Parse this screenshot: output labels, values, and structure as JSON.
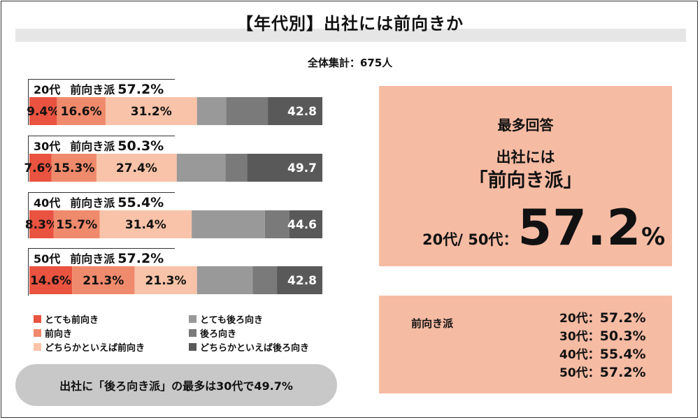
{
  "header": {
    "title": "【年代別】出社には前向きか",
    "subtitle": "全体集計：675人"
  },
  "chart_data": {
    "type": "bar",
    "orientation": "horizontal-stacked-100",
    "series_names": [
      "とても前向き",
      "前向き",
      "どちらかといえば前向き",
      "とても後ろ向き",
      "後ろ向き",
      "どちらかといえば後ろ向き"
    ],
    "colors": [
      "#e9533f",
      "#f08a6c",
      "#f8c3a8",
      "#999999",
      "#7a7a7a",
      "#595959"
    ],
    "groups": [
      {
        "age": "20代",
        "label": "前向き派",
        "total_label": "57.2%",
        "segment_labels": [
          "9.4%",
          "16.6%",
          "31.2%"
        ],
        "right_label": "42.8",
        "values": [
          9.4,
          16.6,
          31.2,
          10,
          14.2,
          18.6
        ]
      },
      {
        "age": "30代",
        "label": "前向き派",
        "total_label": "50.3%",
        "segment_labels": [
          "7.6%",
          "15.3%",
          "27.4%"
        ],
        "right_label": "49.7",
        "values": [
          7.6,
          15.3,
          27.4,
          16.6,
          7.4,
          25.7
        ]
      },
      {
        "age": "40代",
        "label": "前向き派",
        "total_label": "55.4%",
        "segment_labels": [
          "8.3%",
          "15.7%",
          "31.4%"
        ],
        "right_label": "44.6",
        "values": [
          8.3,
          15.7,
          31.4,
          25,
          8.3,
          11.3
        ]
      },
      {
        "age": "50代",
        "label": "前向き派",
        "total_label": "57.2%",
        "segment_labels": [
          "14.6%",
          "21.3%",
          "21.3%"
        ],
        "right_label": "42.8",
        "values": [
          14.6,
          21.3,
          21.3,
          19,
          8.3,
          15.5
        ]
      }
    ]
  },
  "legend": [
    {
      "label": "とても前向き",
      "color": "#e9533f"
    },
    {
      "label": "前向き",
      "color": "#f08a6c"
    },
    {
      "label": "どちらかといえば前向き",
      "color": "#f8c3a8"
    },
    {
      "label": "とても後ろ向き",
      "color": "#999999"
    },
    {
      "label": "後ろ向き",
      "color": "#7a7a7a"
    },
    {
      "label": "どちらかといえば後ろ向き",
      "color": "#595959"
    }
  ],
  "pill": {
    "text": "出社に「後ろ向き派」の最多は30代で49.7%"
  },
  "highlight": {
    "heading": "最多回答",
    "line1": "出社には",
    "line2": "「前向き派」",
    "ages": "20代/ 50代：",
    "value": "57.2",
    "unit": "%"
  },
  "summary": {
    "label": "前向き派",
    "rows": [
      {
        "age": "20代：",
        "value": "57.2%"
      },
      {
        "age": "30代：",
        "value": "50.3%"
      },
      {
        "age": "40代：",
        "value": "55.4%"
      },
      {
        "age": "50代：",
        "value": "57.2%"
      }
    ]
  }
}
